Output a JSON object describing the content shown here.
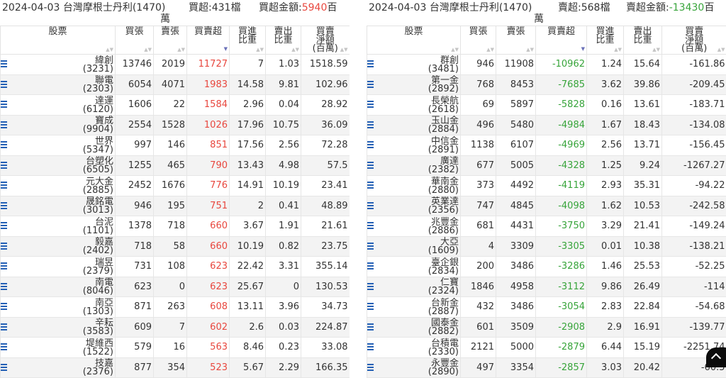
{
  "left": {
    "header": {
      "date": "2024-04-03",
      "broker": "台灣摩根士丹利(1470)",
      "count_label": "買超:431檔",
      "amount_label": "買超金額:",
      "amount_value": "5940",
      "amount_unit_a": "百",
      "amount_unit_b": "萬"
    },
    "columns": [
      "股票",
      "買張",
      "賣張",
      "買賣超",
      "買進\n比重",
      "賣出\n比重",
      "買賣\n淨額\n(百萬)"
    ],
    "rows": [
      {
        "name": "緯創",
        "code": "(3231)",
        "buy": "13746",
        "sell": "2019",
        "net": "11727",
        "buy_pct": "7",
        "sell_pct": "1.03",
        "amount": "1518.59"
      },
      {
        "name": "聯電",
        "code": "(2303)",
        "buy": "6054",
        "sell": "4071",
        "net": "1983",
        "buy_pct": "14.58",
        "sell_pct": "9.81",
        "amount": "102.96"
      },
      {
        "name": "達運",
        "code": "(6120)",
        "buy": "1606",
        "sell": "22",
        "net": "1584",
        "buy_pct": "2.96",
        "sell_pct": "0.04",
        "amount": "28.92"
      },
      {
        "name": "寶成",
        "code": "(9904)",
        "buy": "2554",
        "sell": "1528",
        "net": "1026",
        "buy_pct": "17.96",
        "sell_pct": "10.75",
        "amount": "36.09"
      },
      {
        "name": "世界",
        "code": "(5347)",
        "buy": "997",
        "sell": "146",
        "net": "851",
        "buy_pct": "17.56",
        "sell_pct": "2.56",
        "amount": "72.28"
      },
      {
        "name": "台塑化",
        "code": "(6505)",
        "buy": "1255",
        "sell": "465",
        "net": "790",
        "buy_pct": "13.43",
        "sell_pct": "4.98",
        "amount": "57.5"
      },
      {
        "name": "元大金",
        "code": "(2885)",
        "buy": "2452",
        "sell": "1676",
        "net": "776",
        "buy_pct": "14.91",
        "sell_pct": "10.19",
        "amount": "23.41"
      },
      {
        "name": "晟銘電",
        "code": "(3013)",
        "buy": "946",
        "sell": "195",
        "net": "751",
        "buy_pct": "2",
        "sell_pct": "0.41",
        "amount": "48.89"
      },
      {
        "name": "台泥",
        "code": "(1101)",
        "buy": "1378",
        "sell": "718",
        "net": "660",
        "buy_pct": "3.67",
        "sell_pct": "1.91",
        "amount": "21.61"
      },
      {
        "name": "毅嘉",
        "code": "(2402)",
        "buy": "718",
        "sell": "58",
        "net": "660",
        "buy_pct": "10.19",
        "sell_pct": "0.82",
        "amount": "23.75"
      },
      {
        "name": "瑞昱",
        "code": "(2379)",
        "buy": "731",
        "sell": "108",
        "net": "623",
        "buy_pct": "22.42",
        "sell_pct": "3.31",
        "amount": "355.14"
      },
      {
        "name": "南電",
        "code": "(8046)",
        "buy": "623",
        "sell": "0",
        "net": "623",
        "buy_pct": "25.67",
        "sell_pct": "0",
        "amount": "130.53"
      },
      {
        "name": "南亞",
        "code": "(1303)",
        "buy": "871",
        "sell": "263",
        "net": "608",
        "buy_pct": "13.11",
        "sell_pct": "3.96",
        "amount": "34.73"
      },
      {
        "name": "辛耘",
        "code": "(3583)",
        "buy": "609",
        "sell": "7",
        "net": "602",
        "buy_pct": "2.6",
        "sell_pct": "0.03",
        "amount": "224.87"
      },
      {
        "name": "堤維西",
        "code": "(1522)",
        "buy": "579",
        "sell": "16",
        "net": "563",
        "buy_pct": "8.46",
        "sell_pct": "0.23",
        "amount": "33.08"
      },
      {
        "name": "技嘉",
        "code": "(2376)",
        "buy": "877",
        "sell": "354",
        "net": "523",
        "buy_pct": "5.67",
        "sell_pct": "2.29",
        "amount": "166.35"
      }
    ]
  },
  "right": {
    "header": {
      "date": "2024-04-03",
      "broker": "台灣摩根士丹利(1470)",
      "count_label": "賣超:568檔",
      "amount_label": "賣超金額:",
      "amount_value": "-13430",
      "amount_unit_a": "百",
      "amount_unit_b": "萬"
    },
    "columns": [
      "股票",
      "買張",
      "賣張",
      "買賣超",
      "買進\n比重",
      "賣出\n比重",
      "買賣\n淨額\n(百萬)"
    ],
    "rows": [
      {
        "name": "群創",
        "code": "(3481)",
        "buy": "946",
        "sell": "11908",
        "net": "-10962",
        "buy_pct": "1.24",
        "sell_pct": "15.64",
        "amount": "-161.86"
      },
      {
        "name": "第一金",
        "code": "(2892)",
        "buy": "768",
        "sell": "8453",
        "net": "-7685",
        "buy_pct": "3.62",
        "sell_pct": "39.86",
        "amount": "-209.45"
      },
      {
        "name": "長榮航",
        "code": "(2618)",
        "buy": "69",
        "sell": "5897",
        "net": "-5828",
        "buy_pct": "0.16",
        "sell_pct": "13.61",
        "amount": "-183.71"
      },
      {
        "name": "玉山金",
        "code": "(2884)",
        "buy": "496",
        "sell": "5480",
        "net": "-4984",
        "buy_pct": "1.67",
        "sell_pct": "18.43",
        "amount": "-134.08"
      },
      {
        "name": "中信金",
        "code": "(2891)",
        "buy": "1138",
        "sell": "6107",
        "net": "-4969",
        "buy_pct": "2.56",
        "sell_pct": "13.71",
        "amount": "-156.45"
      },
      {
        "name": "廣達",
        "code": "(2382)",
        "buy": "677",
        "sell": "5005",
        "net": "-4328",
        "buy_pct": "1.25",
        "sell_pct": "9.24",
        "amount": "-1267.27"
      },
      {
        "name": "華南金",
        "code": "(2880)",
        "buy": "373",
        "sell": "4492",
        "net": "-4119",
        "buy_pct": "2.93",
        "sell_pct": "35.31",
        "amount": "-94.22"
      },
      {
        "name": "英業達",
        "code": "(2356)",
        "buy": "747",
        "sell": "4845",
        "net": "-4098",
        "buy_pct": "1.62",
        "sell_pct": "10.53",
        "amount": "-242.58"
      },
      {
        "name": "兆豐金",
        "code": "(2886)",
        "buy": "681",
        "sell": "4431",
        "net": "-3750",
        "buy_pct": "3.29",
        "sell_pct": "21.41",
        "amount": "-149.24"
      },
      {
        "name": "大亞",
        "code": "(1609)",
        "buy": "4",
        "sell": "3309",
        "net": "-3305",
        "buy_pct": "0.01",
        "sell_pct": "10.38",
        "amount": "-138.21"
      },
      {
        "name": "臺企銀",
        "code": "(2834)",
        "buy": "200",
        "sell": "3486",
        "net": "-3286",
        "buy_pct": "1.46",
        "sell_pct": "25.53",
        "amount": "-52.25"
      },
      {
        "name": "仁寶",
        "code": "(2324)",
        "buy": "1846",
        "sell": "4958",
        "net": "-3112",
        "buy_pct": "9.86",
        "sell_pct": "26.49",
        "amount": "-114"
      },
      {
        "name": "台新金",
        "code": "(2887)",
        "buy": "432",
        "sell": "3486",
        "net": "-3054",
        "buy_pct": "2.83",
        "sell_pct": "22.84",
        "amount": "-54.68"
      },
      {
        "name": "國泰金",
        "code": "(2882)",
        "buy": "601",
        "sell": "3509",
        "net": "-2908",
        "buy_pct": "2.9",
        "sell_pct": "16.91",
        "amount": "-139.77"
      },
      {
        "name": "台積電",
        "code": "(2330)",
        "buy": "2121",
        "sell": "5000",
        "net": "-2879",
        "buy_pct": "6.44",
        "sell_pct": "15.19",
        "amount": "-2251.74"
      },
      {
        "name": "永豐金",
        "code": "(2890)",
        "buy": "497",
        "sell": "3354",
        "net": "-2857",
        "buy_pct": "3.03",
        "sell_pct": "20.42",
        "amount": "-60.5"
      }
    ]
  },
  "sort_indicator": "▲▼",
  "icons": {
    "row_menu": "list-icon",
    "scroll_top": "arrow-up-icon"
  },
  "colors": {
    "positive": "#e8473e",
    "negative": "#37a43a",
    "icon": "#2460b5"
  }
}
